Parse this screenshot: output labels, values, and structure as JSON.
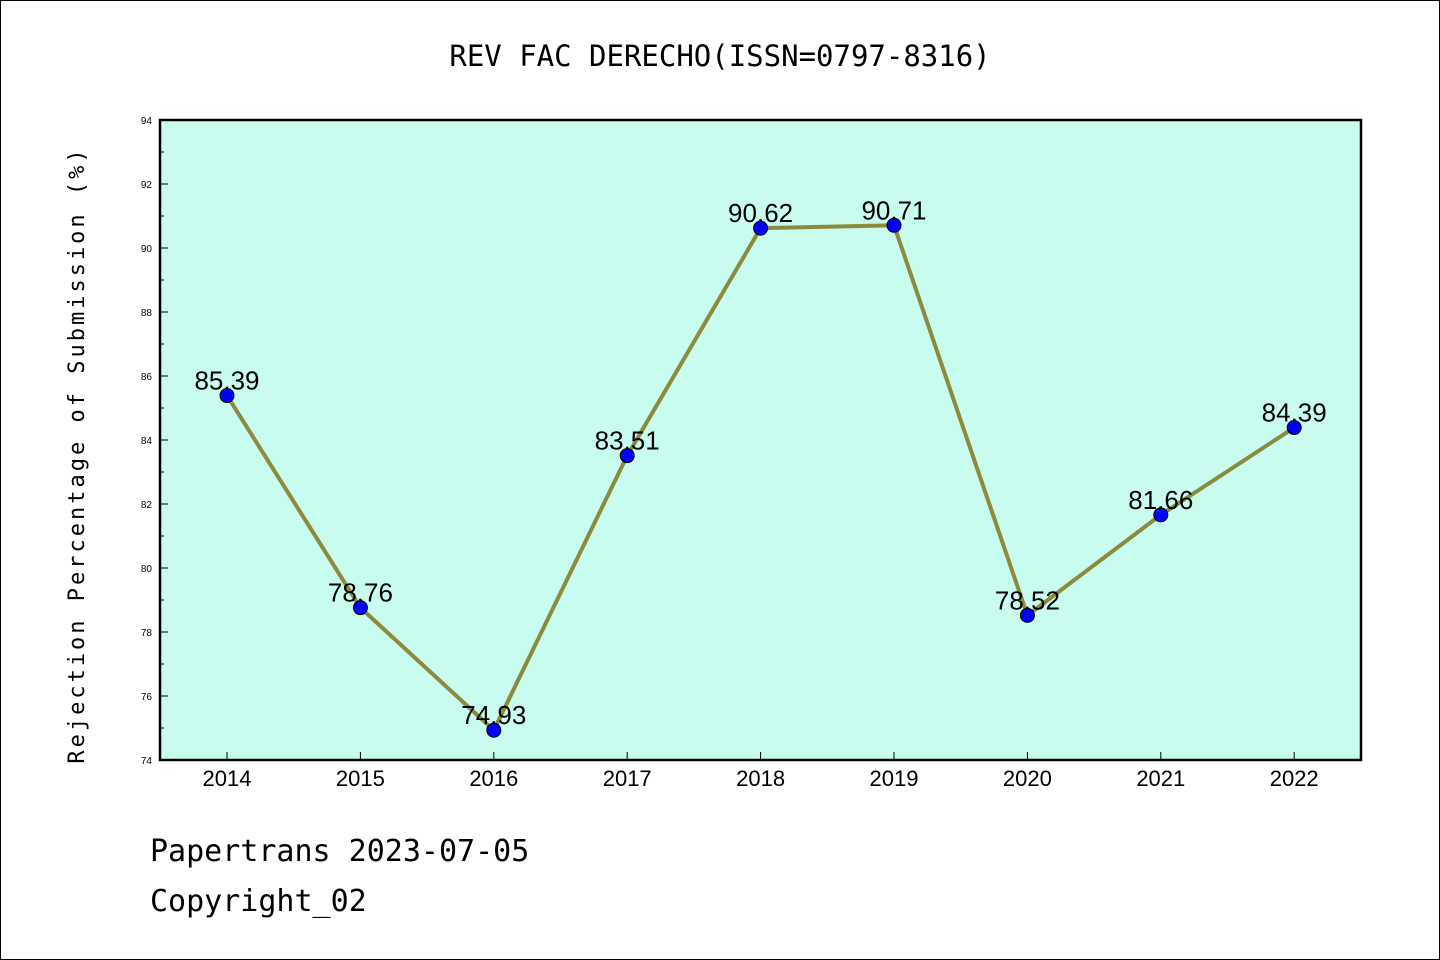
{
  "chart_data": {
    "type": "line",
    "title": "REV FAC DERECHO(ISSN=0797-8316)",
    "xlabel": "",
    "ylabel": "Rejection Percentage of Submission (%)",
    "categories": [
      "2014",
      "2015",
      "2016",
      "2017",
      "2018",
      "2019",
      "2020",
      "2021",
      "2022"
    ],
    "series": [
      {
        "values": [
          85.39,
          78.76,
          74.93,
          83.51,
          90.62,
          90.71,
          78.52,
          81.66,
          84.39
        ],
        "data_labels": [
          "85.39",
          "78.76",
          "74.93",
          "83.51",
          "90.62",
          "90.71",
          "78.52",
          "81.66",
          "84.39"
        ]
      }
    ],
    "ylim": [
      74,
      94
    ],
    "yticks": [
      "74",
      "76",
      "78",
      "80",
      "82",
      "84",
      "86",
      "88",
      "90",
      "92",
      "94"
    ],
    "grid": false,
    "legend": "none",
    "colors": {
      "plot_background": "#c7fcee",
      "line": "#8c8a3c",
      "marker": "#0000ff"
    }
  },
  "footer": {
    "line1": "Papertrans 2023-07-05",
    "line2": "Copyright_02"
  }
}
